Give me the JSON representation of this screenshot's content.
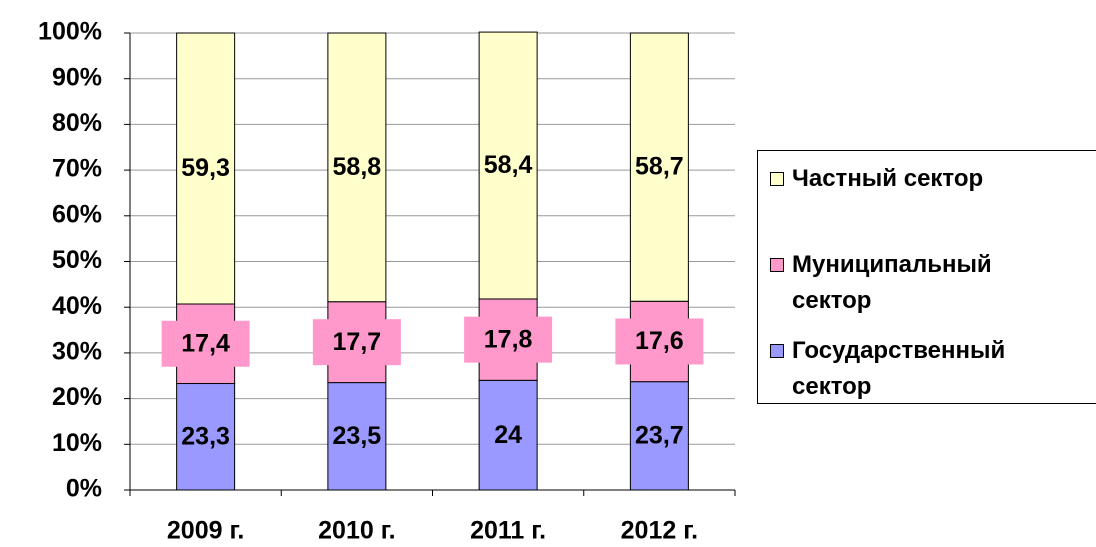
{
  "chart_data": {
    "type": "stacked_bar",
    "categories": [
      "2009 г.",
      "2010 г.",
      "2011 г.",
      "2012 г."
    ],
    "series": [
      {
        "name": "Государственный сектор",
        "color": "#9999FF",
        "values": [
          23.3,
          23.5,
          24,
          23.7
        ],
        "value_labels": [
          "23,3",
          "23,5",
          "24",
          "23,7"
        ]
      },
      {
        "name": "Муниципальный сектор",
        "color": "#FF99CC",
        "values": [
          17.4,
          17.7,
          17.8,
          17.6
        ],
        "value_labels": [
          "17,4",
          "17,7",
          "17,8",
          "17,6"
        ],
        "label_background": "#FF99CC"
      },
      {
        "name": "Частный сектор",
        "color": "#FFFFCC",
        "values": [
          59.3,
          58.8,
          58.4,
          58.7
        ],
        "value_labels": [
          "59,3",
          "58,8",
          "58,4",
          "58,7"
        ]
      }
    ],
    "ylim": [
      0,
      100
    ],
    "yticks": [
      {
        "value": 0,
        "label": "0%"
      },
      {
        "value": 10,
        "label": "10%"
      },
      {
        "value": 20,
        "label": "20%"
      },
      {
        "value": 30,
        "label": "30%"
      },
      {
        "value": 40,
        "label": "40%"
      },
      {
        "value": 50,
        "label": "50%"
      },
      {
        "value": 60,
        "label": "60%"
      },
      {
        "value": 70,
        "label": "70%"
      },
      {
        "value": 80,
        "label": "80%"
      },
      {
        "value": 90,
        "label": "90%"
      },
      {
        "value": 100,
        "label": "100%"
      }
    ],
    "grid": true,
    "legend": "right"
  }
}
